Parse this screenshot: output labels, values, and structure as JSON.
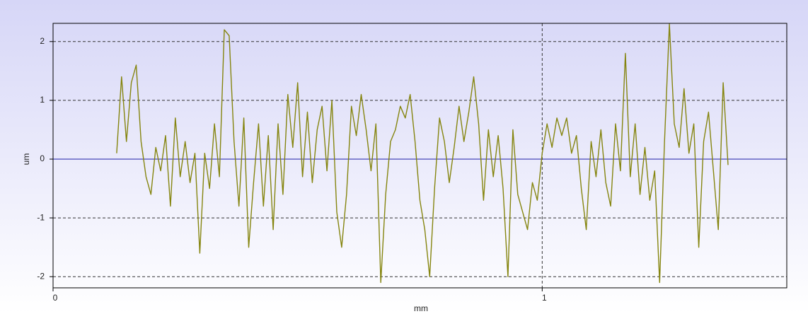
{
  "chart_data": {
    "type": "line",
    "xlabel": "mm",
    "ylabel": "um",
    "xlim": [
      0,
      1.5
    ],
    "ylim": [
      -2.19,
      2.31
    ],
    "xticks": [
      0,
      1
    ],
    "yticks": [
      -2,
      -1,
      0,
      1,
      2
    ],
    "grid": true,
    "zero_line_color": "#1c1ca8",
    "x": [
      0.13,
      0.14,
      0.15,
      0.16,
      0.17,
      0.18,
      0.19,
      0.2,
      0.21,
      0.22,
      0.23,
      0.24,
      0.25,
      0.26,
      0.27,
      0.28,
      0.29,
      0.3,
      0.31,
      0.32,
      0.33,
      0.34,
      0.35,
      0.36,
      0.37,
      0.38,
      0.39,
      0.4,
      0.41,
      0.42,
      0.43,
      0.44,
      0.45,
      0.46,
      0.47,
      0.48,
      0.49,
      0.5,
      0.51,
      0.52,
      0.53,
      0.54,
      0.55,
      0.56,
      0.57,
      0.58,
      0.59,
      0.6,
      0.61,
      0.62,
      0.63,
      0.64,
      0.65,
      0.66,
      0.67,
      0.68,
      0.69,
      0.7,
      0.71,
      0.72,
      0.73,
      0.74,
      0.75,
      0.76,
      0.77,
      0.78,
      0.79,
      0.8,
      0.81,
      0.82,
      0.83,
      0.84,
      0.85,
      0.86,
      0.87,
      0.88,
      0.89,
      0.9,
      0.91,
      0.92,
      0.93,
      0.94,
      0.95,
      0.96,
      0.97,
      0.98,
      0.99,
      1.0,
      1.01,
      1.02,
      1.03,
      1.04,
      1.05,
      1.06,
      1.07,
      1.08,
      1.09,
      1.1,
      1.11,
      1.12,
      1.13,
      1.14,
      1.15,
      1.16,
      1.17,
      1.18,
      1.19,
      1.2,
      1.21,
      1.22,
      1.23,
      1.24,
      1.25,
      1.26,
      1.27,
      1.28,
      1.29,
      1.3,
      1.31,
      1.32,
      1.33,
      1.34,
      1.35,
      1.36,
      1.37,
      1.38
    ],
    "series": [
      {
        "color": "#85850f",
        "values": [
          0.1,
          1.4,
          0.3,
          1.3,
          1.6,
          0.3,
          -0.3,
          -0.6,
          0.2,
          -0.2,
          0.4,
          -0.8,
          0.7,
          -0.3,
          0.3,
          -0.4,
          0.1,
          -1.6,
          0.1,
          -0.5,
          0.6,
          -0.3,
          2.2,
          2.1,
          0.3,
          -0.8,
          0.7,
          -1.5,
          -0.4,
          0.6,
          -0.8,
          0.4,
          -1.2,
          0.6,
          -0.6,
          1.1,
          0.2,
          1.3,
          -0.3,
          0.8,
          -0.4,
          0.5,
          0.9,
          -0.2,
          1.0,
          -0.9,
          -1.5,
          -0.6,
          0.9,
          0.4,
          1.1,
          0.5,
          -0.2,
          0.6,
          -2.1,
          -0.6,
          0.3,
          0.5,
          0.9,
          0.7,
          1.1,
          0.3,
          -0.7,
          -1.2,
          -2.0,
          -0.5,
          0.7,
          0.3,
          -0.4,
          0.2,
          0.9,
          0.3,
          0.8,
          1.4,
          0.6,
          -0.7,
          0.5,
          -0.3,
          0.4,
          -0.5,
          -2.0,
          0.5,
          -0.6,
          -0.9,
          -1.2,
          -0.4,
          -0.7,
          0.1,
          0.6,
          0.2,
          0.7,
          0.4,
          0.7,
          0.1,
          0.4,
          -0.5,
          -1.2,
          0.3,
          -0.3,
          0.5,
          -0.4,
          -0.8,
          0.6,
          -0.2,
          1.8,
          -0.3,
          0.6,
          -0.6,
          0.2,
          -0.7,
          -0.2,
          -2.1,
          0.3,
          2.3,
          0.6,
          0.2,
          1.2,
          0.1,
          0.6,
          -1.5,
          0.3,
          0.8,
          -0.2,
          -1.2,
          1.3,
          -0.1
        ]
      }
    ]
  }
}
